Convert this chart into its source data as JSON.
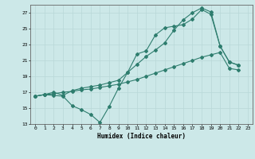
{
  "xlabel": "Humidex (Indice chaleur)",
  "background_color": "#cce8e8",
  "grid_color": "#b8d8d8",
  "line_color": "#2e7d6e",
  "xlim": [
    -0.5,
    23.5
  ],
  "ylim": [
    13,
    28
  ],
  "yticks": [
    13,
    15,
    17,
    19,
    21,
    23,
    25,
    27
  ],
  "xticks": [
    0,
    1,
    2,
    3,
    4,
    5,
    6,
    7,
    8,
    9,
    10,
    11,
    12,
    13,
    14,
    15,
    16,
    17,
    18,
    19,
    20,
    21,
    22,
    23
  ],
  "line1_x": [
    0,
    1,
    2,
    3,
    4,
    5,
    6,
    7,
    8,
    9,
    10,
    11,
    12,
    13,
    14,
    15,
    16,
    17,
    18,
    19,
    20,
    21,
    22
  ],
  "line1_y": [
    16.5,
    16.7,
    16.6,
    16.5,
    15.3,
    14.8,
    14.2,
    13.2,
    15.2,
    17.5,
    19.5,
    21.8,
    22.2,
    24.2,
    25.1,
    25.3,
    25.5,
    26.2,
    27.4,
    26.8,
    22.8,
    20.8,
    20.4
  ],
  "line2_x": [
    0,
    1,
    2,
    3,
    4,
    5,
    6,
    7,
    8,
    9,
    10,
    11,
    12,
    13,
    14,
    15,
    16,
    17,
    18,
    19,
    20,
    21,
    22
  ],
  "line2_y": [
    16.5,
    16.7,
    16.8,
    17.0,
    17.1,
    17.3,
    17.4,
    17.6,
    17.8,
    18.0,
    18.3,
    18.6,
    19.0,
    19.4,
    19.8,
    20.2,
    20.6,
    21.0,
    21.4,
    21.7,
    22.0,
    20.0,
    19.8
  ],
  "line3_x": [
    0,
    1,
    2,
    3,
    4,
    5,
    6,
    7,
    8,
    9,
    10,
    11,
    12,
    13,
    14,
    15,
    16,
    17,
    18,
    19,
    20,
    21,
    22
  ],
  "line3_y": [
    16.5,
    16.7,
    17.0,
    16.6,
    17.2,
    17.5,
    17.7,
    17.9,
    18.2,
    18.5,
    19.5,
    20.5,
    21.5,
    22.3,
    23.2,
    24.8,
    26.1,
    27.0,
    27.6,
    27.1,
    22.8,
    20.8,
    20.4
  ]
}
